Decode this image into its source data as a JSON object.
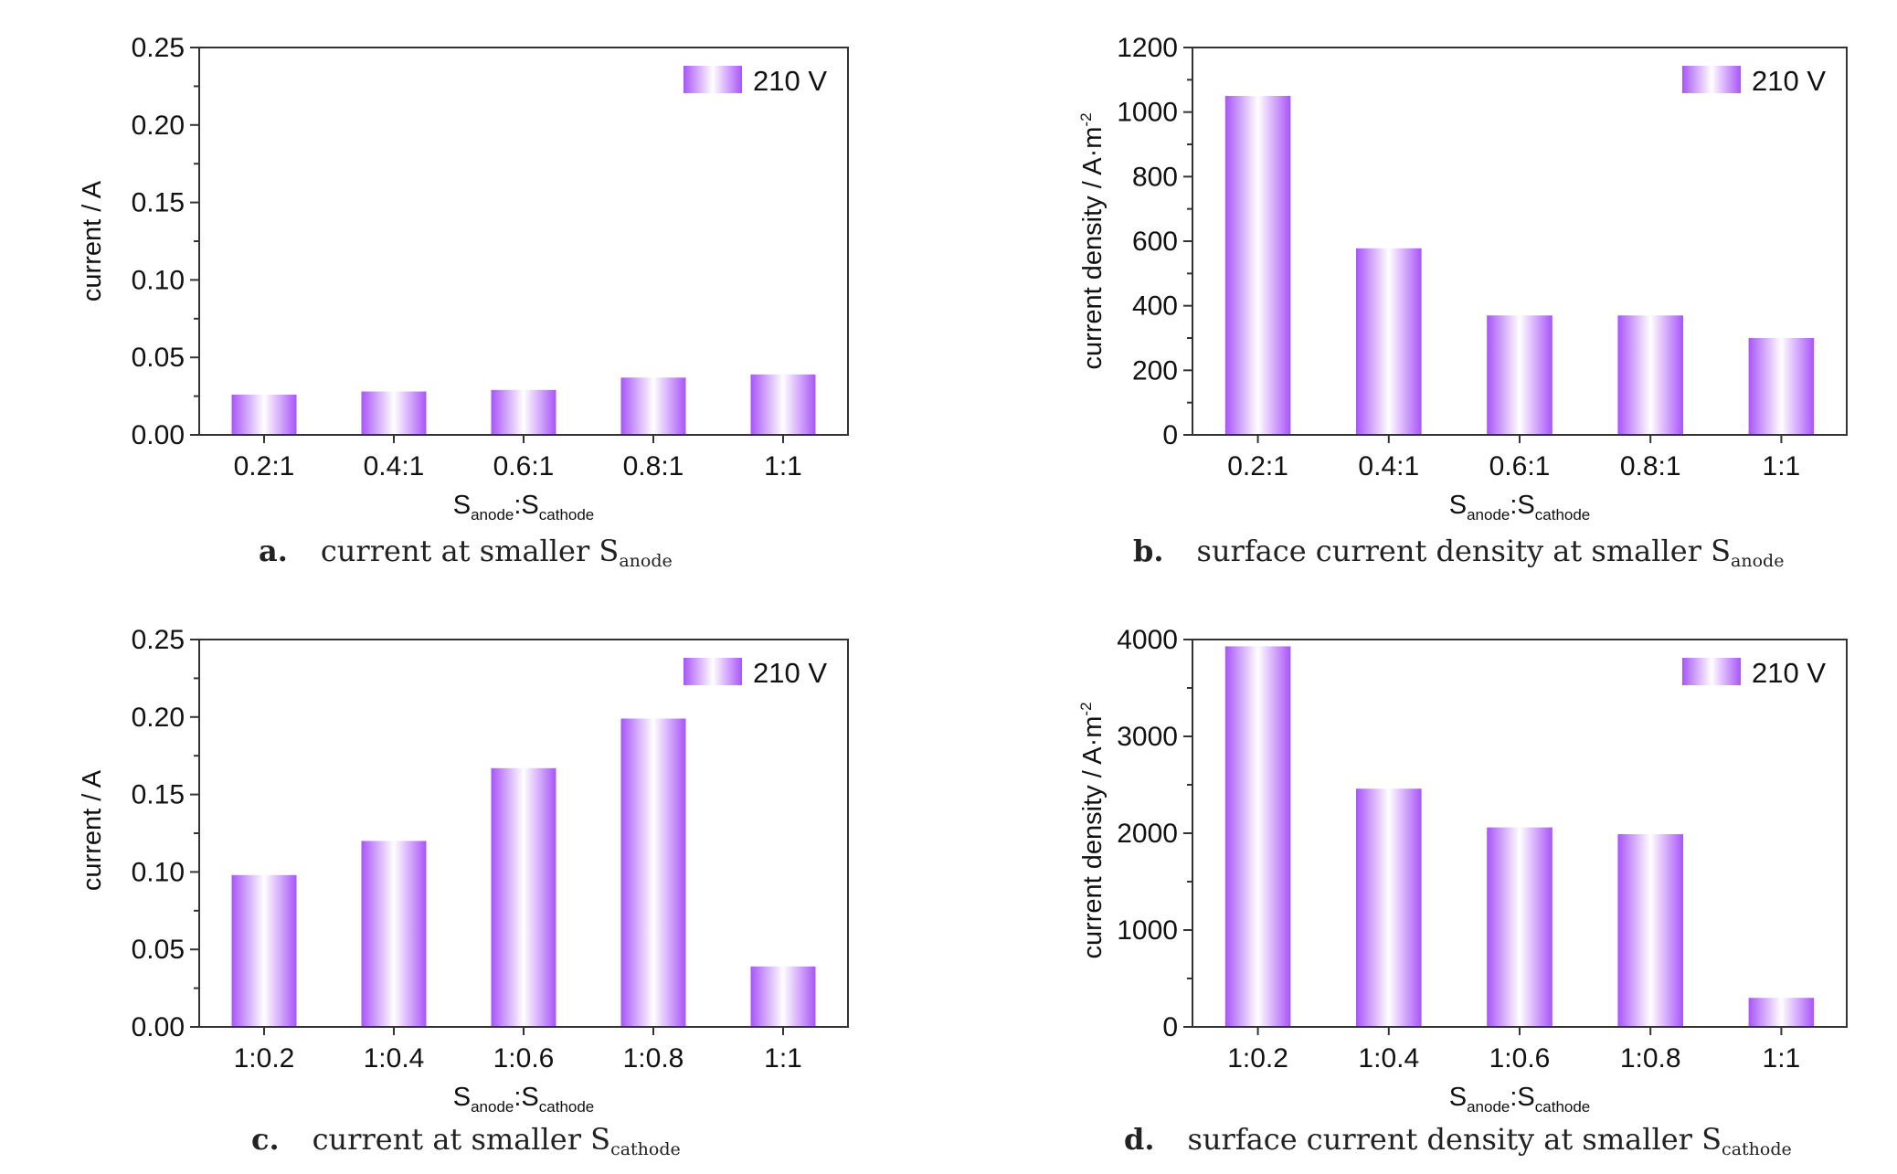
{
  "colors": {
    "bar": "#a855f7",
    "bar_highlight": "#ffffff",
    "axis": "#333333"
  },
  "captions": [
    {
      "letter": "a.",
      "text": "current at smaller S",
      "sub": "anode"
    },
    {
      "letter": "b.",
      "text": "surface current density at smaller S",
      "sub": "anode"
    },
    {
      "letter": "c.",
      "text": "current at smaller S",
      "sub": "cathode"
    },
    {
      "letter": "d.",
      "text": "surface current density at smaller S",
      "sub": "cathode"
    }
  ],
  "chart_data": [
    {
      "type": "bar",
      "categories": [
        "0.2:1",
        "0.4:1",
        "0.6:1",
        "0.8:1",
        "1:1"
      ],
      "series": [
        {
          "name": "210 V",
          "values": [
            0.026,
            0.028,
            0.029,
            0.037,
            0.039
          ]
        }
      ],
      "xlabel": {
        "main": "S",
        "sub1": "anode",
        "sep": ":S",
        "sub2": "cathode"
      },
      "ylabel": {
        "main": "current / A"
      },
      "ylim": [
        0,
        0.25
      ],
      "yticks": [
        "0.00",
        "0.05",
        "0.10",
        "0.15",
        "0.20",
        "0.25"
      ],
      "legend": "top-right",
      "grid": false
    },
    {
      "type": "bar",
      "categories": [
        "0.2:1",
        "0.4:1",
        "0.6:1",
        "0.8:1",
        "1:1"
      ],
      "series": [
        {
          "name": "210 V",
          "values": [
            1050,
            578,
            370,
            370,
            300
          ]
        }
      ],
      "xlabel": {
        "main": "S",
        "sub1": "anode",
        "sep": ":S",
        "sub2": "cathode"
      },
      "ylabel": {
        "main": "current density / A·m",
        "sup": "-2"
      },
      "ylim": [
        0,
        1200
      ],
      "yticks": [
        "0",
        "200",
        "400",
        "600",
        "800",
        "1000",
        "1200"
      ],
      "legend": "top-right",
      "grid": false
    },
    {
      "type": "bar",
      "categories": [
        "1:0.2",
        "1:0.4",
        "1:0.6",
        "1:0.8",
        "1:1"
      ],
      "series": [
        {
          "name": "210 V",
          "values": [
            0.098,
            0.12,
            0.167,
            0.199,
            0.039
          ]
        }
      ],
      "xlabel": {
        "main": "S",
        "sub1": "anode",
        "sep": ":S",
        "sub2": "cathode"
      },
      "ylabel": {
        "main": "current / A"
      },
      "ylim": [
        0,
        0.25
      ],
      "yticks": [
        "0.00",
        "0.05",
        "0.10",
        "0.15",
        "0.20",
        "0.25"
      ],
      "legend": "top-right",
      "grid": false
    },
    {
      "type": "bar",
      "categories": [
        "1:0.2",
        "1:0.4",
        "1:0.6",
        "1:0.8",
        "1:1"
      ],
      "series": [
        {
          "name": "210 V",
          "values": [
            3930,
            2460,
            2060,
            1990,
            300
          ]
        }
      ],
      "xlabel": {
        "main": "S",
        "sub1": "anode",
        "sep": ":S",
        "sub2": "cathode"
      },
      "ylabel": {
        "main": "current density / A·m",
        "sup": "-2"
      },
      "ylim": [
        0,
        4000
      ],
      "yticks": [
        "0",
        "1000",
        "2000",
        "3000",
        "4000"
      ],
      "legend": "top-right",
      "grid": false
    }
  ]
}
